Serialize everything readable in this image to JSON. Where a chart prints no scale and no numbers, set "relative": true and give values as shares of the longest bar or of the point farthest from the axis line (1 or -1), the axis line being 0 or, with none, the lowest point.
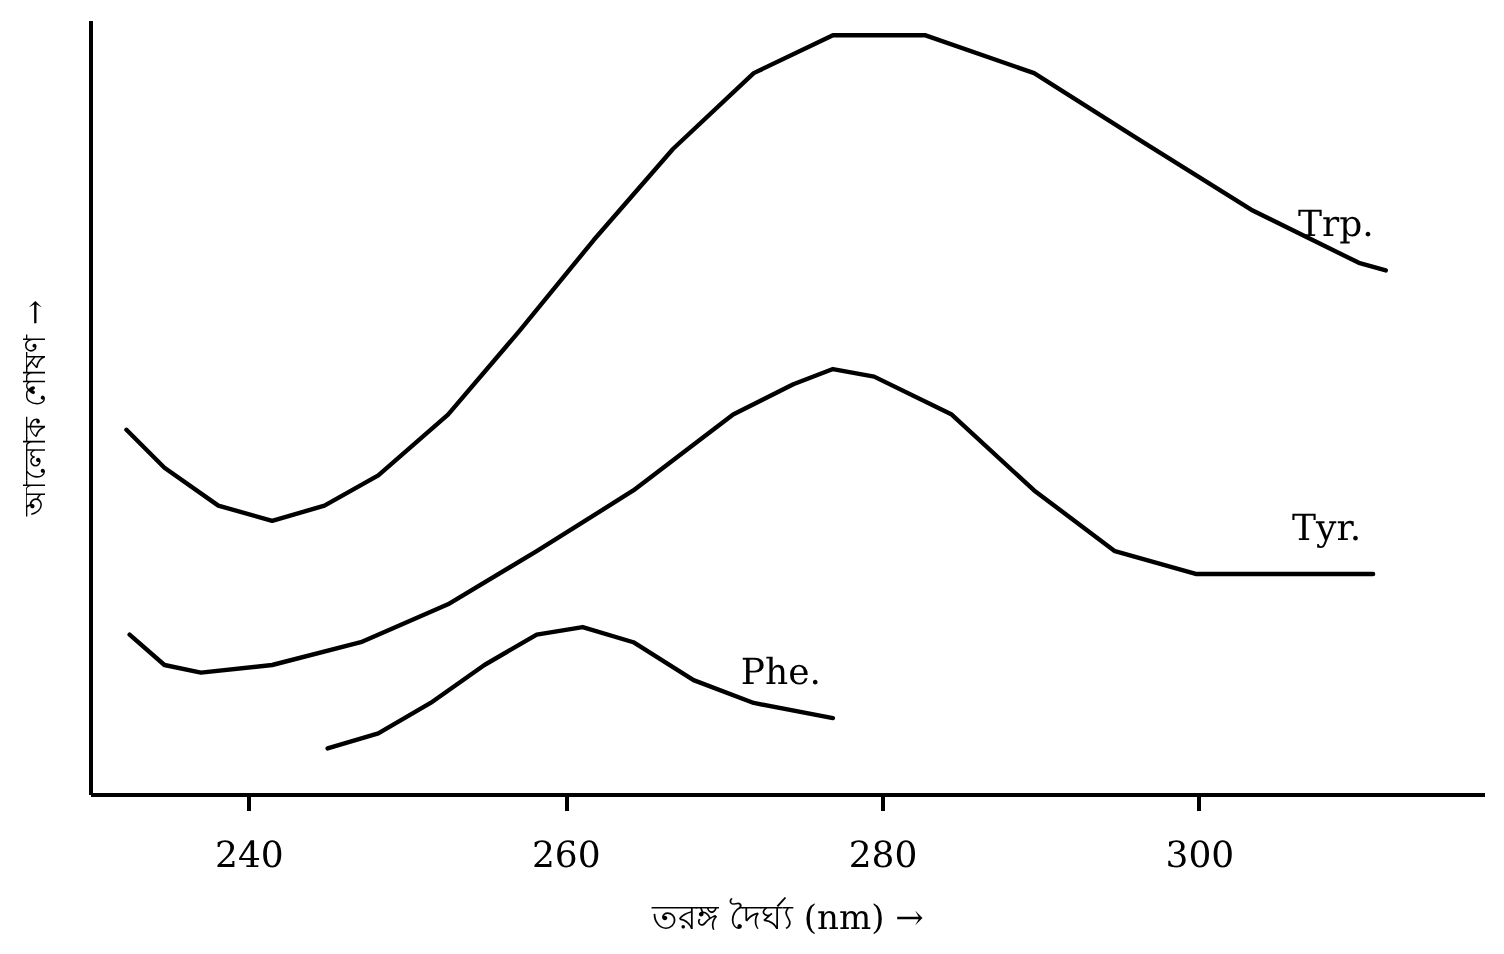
{
  "chart_data": {
    "type": "line",
    "relative": true,
    "xlabel": "তরঙ্গ দৈর্ঘ্য (nm) →",
    "ylabel": "আলোক শোষণ →",
    "xlim": [
      230,
      318
    ],
    "xticks": [
      240,
      260,
      280,
      300
    ],
    "grid": false,
    "legend": false,
    "marker": "none",
    "line_style": "solid",
    "series": [
      {
        "name": "Trp.",
        "color": "#000000",
        "x": [
          232.3,
          234.7,
          238.1,
          241.5,
          244.8,
          248.2,
          252.6,
          257.1,
          261.8,
          266.8,
          271.9,
          276.9,
          282.7,
          289.6,
          296.4,
          303.3,
          310.1,
          311.8
        ],
        "values": [
          0.48,
          0.43,
          0.38,
          0.36,
          0.38,
          0.42,
          0.5,
          0.61,
          0.73,
          0.85,
          0.95,
          1.0,
          1.0,
          0.95,
          0.86,
          0.77,
          0.7,
          0.69
        ]
      },
      {
        "name": "Tyr.",
        "color": "#000000",
        "x": [
          232.5,
          234.7,
          237.0,
          241.5,
          247.1,
          252.6,
          258.2,
          264.3,
          270.6,
          274.4,
          276.9,
          279.5,
          284.4,
          289.6,
          294.7,
          299.8,
          306.7,
          311.0
        ],
        "values": [
          0.21,
          0.17,
          0.16,
          0.17,
          0.2,
          0.25,
          0.32,
          0.4,
          0.5,
          0.54,
          0.56,
          0.55,
          0.5,
          0.4,
          0.32,
          0.29,
          0.29,
          0.29
        ]
      },
      {
        "name": "Phe.",
        "color": "#000000",
        "x": [
          245.0,
          248.2,
          251.5,
          254.9,
          258.2,
          261.1,
          264.3,
          268.1,
          271.9,
          276.9
        ],
        "values": [
          0.06,
          0.08,
          0.12,
          0.17,
          0.21,
          0.22,
          0.2,
          0.15,
          0.12,
          0.1
        ]
      }
    ]
  }
}
